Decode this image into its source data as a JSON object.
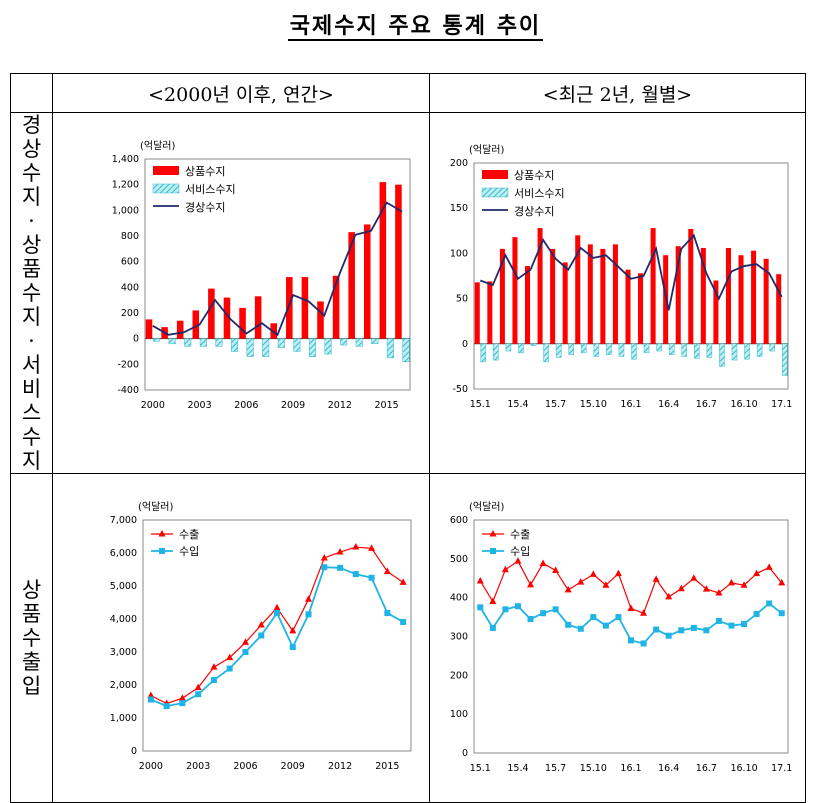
{
  "title": "국제수지 주요 통계 추이",
  "headers": {
    "annual": "<2000년 이후, 연간>",
    "monthly": "<최근 2년, 월별>"
  },
  "row_labels": {
    "row1": "경상수지·상품수지·서비스수지",
    "row2": "상품수출입"
  },
  "colors": {
    "goods": "#ff0000",
    "services": "#33bbcc",
    "current": "#1f2a6b",
    "exports": "#ff0000",
    "imports": "#1fb4e6"
  },
  "chart_data": [
    {
      "id": "annual-balance",
      "type": "bar+line",
      "unit": "(억달러)",
      "x": [
        2000,
        2001,
        2002,
        2003,
        2004,
        2005,
        2006,
        2007,
        2008,
        2009,
        2010,
        2011,
        2012,
        2013,
        2014,
        2015,
        2016
      ],
      "x_tick_labels": [
        "2000",
        "2003",
        "2006",
        "2009",
        "2012",
        "2015"
      ],
      "ylim": [
        -400,
        1400
      ],
      "y_ticks": [
        "-400",
        "-200",
        "0",
        "200",
        "400",
        "600",
        "800",
        "1,000",
        "1,200",
        "1,400"
      ],
      "series": [
        {
          "name": "상품수지",
          "kind": "bar",
          "values": [
            150,
            90,
            140,
            220,
            390,
            320,
            240,
            330,
            120,
            480,
            480,
            290,
            490,
            830,
            890,
            1220,
            1200
          ]
        },
        {
          "name": "서비스수지",
          "kind": "bar",
          "values": [
            -20,
            -40,
            -60,
            -60,
            -60,
            -100,
            -140,
            -140,
            -70,
            -100,
            -140,
            -120,
            -50,
            -60,
            -40,
            -150,
            -180
          ]
        },
        {
          "name": "경상수지",
          "kind": "line",
          "values": [
            100,
            30,
            50,
            110,
            300,
            150,
            40,
            120,
            30,
            340,
            290,
            180,
            510,
            810,
            840,
            1060,
            990
          ]
        }
      ]
    },
    {
      "id": "monthly-balance",
      "type": "bar+line",
      "unit": "(억달러)",
      "x_tick_labels": [
        "15.1",
        "15.4",
        "15.7",
        "15.10",
        "16.1",
        "16.4",
        "16.7",
        "16.10",
        "17.1"
      ],
      "ylim": [
        -50,
        200
      ],
      "y_ticks": [
        "-50",
        "0",
        "50",
        "100",
        "150",
        "200"
      ],
      "series": [
        {
          "name": "상품수지",
          "kind": "bar",
          "values": [
            68,
            69,
            105,
            118,
            86,
            128,
            105,
            90,
            120,
            110,
            105,
            110,
            82,
            78,
            128,
            98,
            108,
            127,
            106,
            70,
            106,
            98,
            103,
            94,
            77
          ]
        },
        {
          "name": "서비스수지",
          "kind": "bar",
          "values": [
            -20,
            -18,
            -8,
            -10,
            -2,
            -20,
            -15,
            -12,
            -10,
            -14,
            -12,
            -14,
            -17,
            -10,
            -8,
            -12,
            -14,
            -16,
            -15,
            -25,
            -18,
            -17,
            -14,
            -8,
            -35
          ]
        },
        {
          "name": "경상수지",
          "kind": "line",
          "values": [
            70,
            65,
            98,
            72,
            82,
            115,
            94,
            82,
            106,
            95,
            98,
            85,
            72,
            75,
            105,
            37,
            105,
            120,
            78,
            50,
            80,
            86,
            88,
            78,
            52
          ]
        }
      ]
    },
    {
      "id": "annual-trade",
      "type": "line",
      "unit": "(억달러)",
      "x": [
        2000,
        2001,
        2002,
        2003,
        2004,
        2005,
        2006,
        2007,
        2008,
        2009,
        2010,
        2011,
        2012,
        2013,
        2014,
        2015,
        2016
      ],
      "x_tick_labels": [
        "2000",
        "2003",
        "2006",
        "2009",
        "2012",
        "2015"
      ],
      "ylim": [
        0,
        7000
      ],
      "y_ticks": [
        "0",
        "1,000",
        "2,000",
        "3,000",
        "4,000",
        "5,000",
        "6,000",
        "7,000"
      ],
      "series": [
        {
          "name": "수출",
          "values": [
            1680,
            1440,
            1600,
            1920,
            2540,
            2830,
            3290,
            3820,
            4340,
            3640,
            4600,
            5850,
            6030,
            6180,
            6140,
            5440,
            5110
          ]
        },
        {
          "name": "수입",
          "values": [
            1560,
            1360,
            1450,
            1720,
            2150,
            2500,
            3000,
            3500,
            4180,
            3150,
            4140,
            5570,
            5550,
            5360,
            5250,
            4180,
            3910
          ]
        }
      ]
    },
    {
      "id": "monthly-trade",
      "type": "line",
      "unit": "(억달러)",
      "x_tick_labels": [
        "15.1",
        "15.4",
        "15.7",
        "15.10",
        "16.1",
        "16.4",
        "16.7",
        "16.10",
        "17.1"
      ],
      "ylim": [
        0,
        600
      ],
      "y_ticks": [
        "0",
        "100",
        "200",
        "300",
        "400",
        "500",
        "600"
      ],
      "series": [
        {
          "name": "수출",
          "values": [
            443,
            390,
            472,
            494,
            433,
            488,
            470,
            420,
            440,
            460,
            432,
            462,
            372,
            360,
            447,
            402,
            423,
            450,
            422,
            412,
            438,
            432,
            462,
            478,
            438
          ]
        },
        {
          "name": "수입",
          "values": [
            375,
            322,
            370,
            378,
            345,
            360,
            370,
            330,
            320,
            350,
            328,
            350,
            290,
            282,
            318,
            302,
            316,
            322,
            316,
            340,
            328,
            332,
            358,
            385,
            360
          ]
        }
      ]
    }
  ]
}
